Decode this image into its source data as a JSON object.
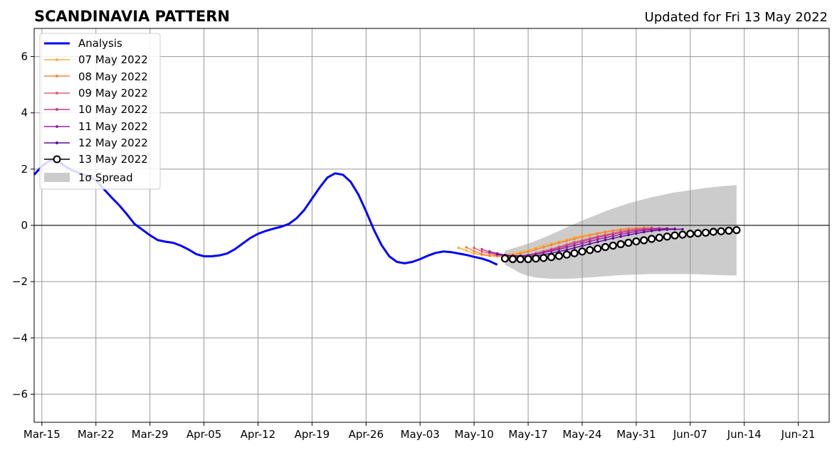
{
  "chart_data": {
    "type": "line",
    "title": "SCANDINAVIA PATTERN",
    "updated": "Updated for Fri 13 May 2022",
    "xlabel": "",
    "ylabel": "",
    "xlim": [
      "2022-03-14",
      "2022-06-25"
    ],
    "ylim": [
      -7,
      7
    ],
    "yticks": [
      6,
      4,
      2,
      0,
      -2,
      -4,
      -6
    ],
    "ytick_labels": [
      "6",
      "4",
      "2",
      "0",
      "−2",
      "−4",
      "−6"
    ],
    "xticks": [
      {
        "date": "2022-03-15",
        "label": "Mar-15"
      },
      {
        "date": "2022-03-22",
        "label": "Mar-22"
      },
      {
        "date": "2022-03-29",
        "label": "Mar-29"
      },
      {
        "date": "2022-04-05",
        "label": "Apr-05"
      },
      {
        "date": "2022-04-12",
        "label": "Apr-12"
      },
      {
        "date": "2022-04-19",
        "label": "Apr-19"
      },
      {
        "date": "2022-04-26",
        "label": "Apr-26"
      },
      {
        "date": "2022-05-03",
        "label": "May-03"
      },
      {
        "date": "2022-05-10",
        "label": "May-10"
      },
      {
        "date": "2022-05-17",
        "label": "May-17"
      },
      {
        "date": "2022-05-24",
        "label": "May-24"
      },
      {
        "date": "2022-05-31",
        "label": "May-31"
      },
      {
        "date": "2022-06-07",
        "label": "Jun-07"
      },
      {
        "date": "2022-06-14",
        "label": "Jun-14"
      },
      {
        "date": "2022-06-21",
        "label": "Jun-21"
      }
    ],
    "grid": true,
    "legend_position": "top-left",
    "legend": {
      "analysis": "Analysis",
      "f07": "07 May 2022",
      "f08": "08 May 2022",
      "f09": "09 May 2022",
      "f10": "10 May 2022",
      "f11": "11 May 2022",
      "f12": "12 May 2022",
      "f13": "13 May 2022",
      "spread": "1σ Spread"
    },
    "analysis": {
      "name": "Analysis",
      "color": "#0000ff",
      "x": [
        "2022-03-14",
        "2022-03-15",
        "2022-03-16",
        "2022-03-17",
        "2022-03-18",
        "2022-03-19",
        "2022-03-20",
        "2022-03-21",
        "2022-03-22",
        "2022-03-23",
        "2022-03-24",
        "2022-03-25",
        "2022-03-26",
        "2022-03-27",
        "2022-03-28",
        "2022-03-29",
        "2022-03-30",
        "2022-03-31",
        "2022-04-01",
        "2022-04-02",
        "2022-04-03",
        "2022-04-04",
        "2022-04-05",
        "2022-04-06",
        "2022-04-07",
        "2022-04-08",
        "2022-04-09",
        "2022-04-10",
        "2022-04-11",
        "2022-04-12",
        "2022-04-13",
        "2022-04-14",
        "2022-04-15",
        "2022-04-16",
        "2022-04-17",
        "2022-04-18",
        "2022-04-19",
        "2022-04-20",
        "2022-04-21",
        "2022-04-22",
        "2022-04-23",
        "2022-04-24",
        "2022-04-25",
        "2022-04-26",
        "2022-04-27",
        "2022-04-28",
        "2022-04-29",
        "2022-04-30",
        "2022-05-01",
        "2022-05-02",
        "2022-05-03",
        "2022-05-04",
        "2022-05-05",
        "2022-05-06",
        "2022-05-07",
        "2022-05-08",
        "2022-05-09",
        "2022-05-10",
        "2022-05-11",
        "2022-05-12",
        "2022-05-13"
      ],
      "y": [
        1.8,
        2.1,
        2.3,
        2.3,
        2.1,
        1.95,
        1.85,
        1.75,
        1.6,
        1.3,
        1.0,
        0.72,
        0.4,
        0.05,
        -0.15,
        -0.35,
        -0.52,
        -0.58,
        -0.62,
        -0.72,
        -0.86,
        -1.02,
        -1.1,
        -1.1,
        -1.07,
        -1.0,
        -0.85,
        -0.65,
        -0.45,
        -0.3,
        -0.2,
        -0.12,
        -0.05,
        0.05,
        0.25,
        0.55,
        0.95,
        1.35,
        1.7,
        1.85,
        1.8,
        1.55,
        1.1,
        0.5,
        -0.15,
        -0.7,
        -1.1,
        -1.3,
        -1.35,
        -1.3,
        -1.2,
        -1.08,
        -0.98,
        -0.93,
        -0.95,
        -1.0,
        -1.05,
        -1.12,
        -1.18,
        -1.27,
        -1.4
      ]
    },
    "forecasts": [
      {
        "name": "07 May 2022",
        "color": "#fcb03b",
        "start": "2022-05-08",
        "y": [
          -0.8,
          -0.9,
          -1.0,
          -1.05,
          -1.08,
          -1.08,
          -1.05,
          -1.0,
          -0.95,
          -0.88,
          -0.8,
          -0.72,
          -0.65,
          -0.58,
          -0.5,
          -0.43,
          -0.37,
          -0.32,
          -0.27,
          -0.22,
          -0.18,
          -0.14,
          -0.11,
          -0.09,
          -0.08,
          -0.08
        ]
      },
      {
        "name": "08 May 2022",
        "color": "#f4863e",
        "start": "2022-05-09",
        "y": [
          -0.78,
          -0.92,
          -1.02,
          -1.08,
          -1.1,
          -1.1,
          -1.06,
          -1.0,
          -0.93,
          -0.86,
          -0.78,
          -0.7,
          -0.62,
          -0.55,
          -0.48,
          -0.41,
          -0.35,
          -0.29,
          -0.24,
          -0.19,
          -0.15,
          -0.12,
          -0.1,
          -0.09,
          -0.08
        ]
      },
      {
        "name": "09 May 2022",
        "color": "#e0617a",
        "start": "2022-05-10",
        "y": [
          -0.8,
          -0.93,
          -1.0,
          -1.06,
          -1.1,
          -1.12,
          -1.1,
          -1.05,
          -0.99,
          -0.92,
          -0.84,
          -0.76,
          -0.68,
          -0.6,
          -0.53,
          -0.46,
          -0.39,
          -0.33,
          -0.27,
          -0.21,
          -0.17,
          -0.13,
          -0.11,
          -0.1,
          -0.1
        ]
      },
      {
        "name": "10 May 2022",
        "color": "#c13d8f",
        "start": "2022-05-11",
        "y": [
          -0.85,
          -0.95,
          -1.02,
          -1.08,
          -1.1,
          -1.1,
          -1.06,
          -1.0,
          -0.94,
          -0.87,
          -0.8,
          -0.72,
          -0.64,
          -0.57,
          -0.5,
          -0.43,
          -0.37,
          -0.31,
          -0.26,
          -0.21,
          -0.17,
          -0.14,
          -0.12,
          -0.11,
          -0.1
        ]
      },
      {
        "name": "11 May 2022",
        "color": "#9a239f",
        "start": "2022-05-12",
        "y": [
          -0.93,
          -1.0,
          -1.05,
          -1.08,
          -1.08,
          -1.06,
          -1.02,
          -0.97,
          -0.91,
          -0.85,
          -0.78,
          -0.71,
          -0.64,
          -0.57,
          -0.5,
          -0.44,
          -0.38,
          -0.32,
          -0.27,
          -0.22,
          -0.18,
          -0.15,
          -0.13,
          -0.12,
          -0.12
        ]
      },
      {
        "name": "12 May 2022",
        "color": "#5e0f96",
        "start": "2022-05-13",
        "y": [
          -1.02,
          -1.06,
          -1.08,
          -1.1,
          -1.1,
          -1.08,
          -1.04,
          -0.99,
          -0.93,
          -0.87,
          -0.8,
          -0.73,
          -0.66,
          -0.59,
          -0.52,
          -0.46,
          -0.4,
          -0.34,
          -0.29,
          -0.24,
          -0.2,
          -0.17,
          -0.15,
          -0.14,
          -0.14
        ]
      }
    ],
    "latest": {
      "name": "13 May 2022",
      "color": "#000000",
      "start": "2022-05-14",
      "y": [
        -1.18,
        -1.2,
        -1.2,
        -1.2,
        -1.18,
        -1.16,
        -1.13,
        -1.09,
        -1.04,
        -0.99,
        -0.93,
        -0.88,
        -0.83,
        -0.77,
        -0.72,
        -0.67,
        -0.62,
        -0.57,
        -0.53,
        -0.48,
        -0.44,
        -0.4,
        -0.36,
        -0.33,
        -0.3,
        -0.28,
        -0.26,
        -0.23,
        -0.21,
        -0.19,
        -0.17
      ]
    },
    "spread": {
      "name": "1σ Spread",
      "color": "#cccccc",
      "start": "2022-05-14",
      "upper": [
        -0.9,
        -0.82,
        -0.74,
        -0.65,
        -0.55,
        -0.44,
        -0.32,
        -0.2,
        -0.07,
        0.05,
        0.17,
        0.28,
        0.39,
        0.5,
        0.6,
        0.69,
        0.78,
        0.86,
        0.93,
        1.0,
        1.06,
        1.12,
        1.17,
        1.21,
        1.25,
        1.29,
        1.33,
        1.36,
        1.39,
        1.41,
        1.43
      ],
      "lower": [
        -1.4,
        -1.55,
        -1.7,
        -1.8,
        -1.85,
        -1.88,
        -1.9,
        -1.9,
        -1.9,
        -1.89,
        -1.87,
        -1.85,
        -1.83,
        -1.81,
        -1.79,
        -1.77,
        -1.76,
        -1.75,
        -1.74,
        -1.73,
        -1.73,
        -1.73,
        -1.73,
        -1.73,
        -1.73,
        -1.74,
        -1.75,
        -1.76,
        -1.77,
        -1.78,
        -1.78
      ]
    }
  }
}
